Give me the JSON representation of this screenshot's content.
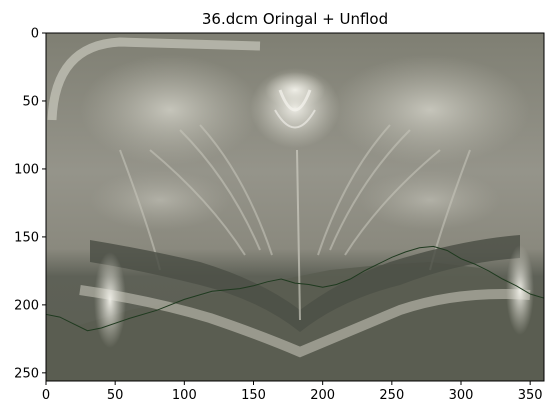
{
  "figure": {
    "title": "36.dcm  Oringal + Unflod"
  },
  "axes": {
    "x_ticks": [
      0,
      50,
      100,
      150,
      200,
      250,
      300,
      350
    ],
    "y_ticks": [
      0,
      50,
      100,
      150,
      200,
      250
    ],
    "x_range": [
      0,
      360
    ],
    "y_range": [
      0,
      256
    ],
    "y_inverted": true
  },
  "image": {
    "description_colors": {
      "background_tissue": "#8c8b7e",
      "bright_tissue": "#e6e5dc",
      "dark_band": "#4f5248",
      "lower_region": "#5c5f53"
    },
    "overlay_line_color": "#1f3a1f",
    "overlay_curve": {
      "x": [
        0,
        10,
        20,
        30,
        40,
        60,
        80,
        100,
        120,
        140,
        150,
        160,
        170,
        180,
        190,
        200,
        210,
        220,
        230,
        240,
        250,
        260,
        270,
        280,
        290,
        300,
        310,
        320,
        330,
        340,
        350,
        360
      ],
      "y": [
        207,
        209,
        214,
        219,
        217,
        210,
        204,
        196,
        190,
        188,
        186,
        183,
        181,
        184,
        185,
        187,
        185,
        181,
        175,
        170,
        165,
        161,
        158,
        157,
        160,
        166,
        170,
        175,
        181,
        186,
        192,
        195
      ]
    }
  }
}
